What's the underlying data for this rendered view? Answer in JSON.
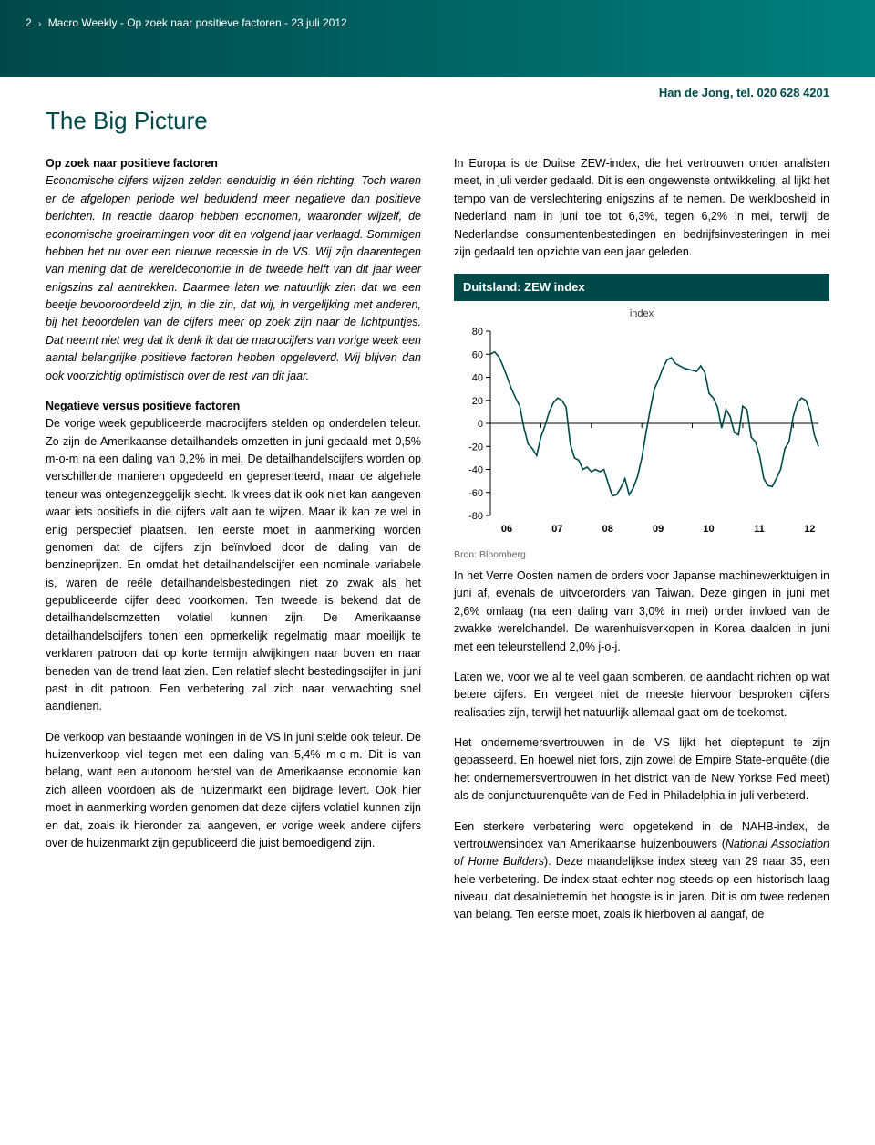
{
  "header": {
    "page_num": "2",
    "publication": "Macro Weekly",
    "subtitle": "Op zoek naar positieve factoren",
    "date": "23 juli 2012"
  },
  "author_line": "Han de Jong, tel. 020 628 4201",
  "title": "The Big Picture",
  "left": {
    "lead_bold": "Op zoek naar positieve factoren",
    "lead_italic": "Economische cijfers wijzen zelden eenduidig in één richting. Toch waren er de afgelopen periode wel beduidend meer negatieve dan positieve berichten. In reactie daarop hebben economen, waaronder wijzelf, de economische groeiramingen voor dit en volgend jaar verlaagd. Sommigen hebben het nu over een nieuwe recessie in de VS. Wij zijn daarentegen van mening dat de wereldeconomie in de tweede helft van dit jaar weer enigszins zal aantrekken. Daarmee laten we natuurlijk zien dat we een beetje bevooroordeeld zijn, in die zin, dat wij, in vergelijking met anderen, bij het beoordelen van de cijfers meer op zoek zijn naar de lichtpuntjes. Dat neemt niet weg dat ik denk ik dat de macrocijfers van vorige week een aantal belangrijke positieve factoren hebben opgeleverd. Wij blijven dan ook voorzichtig optimistisch over de rest van dit jaar.",
    "h2": "Negatieve versus positieve factoren",
    "p2": "De vorige week gepubliceerde macrocijfers stelden op onderdelen teleur. Zo zijn de Amerikaanse detailhandels-omzetten in juni gedaald met 0,5% m-o-m na een daling van 0,2% in mei. De detailhandelscijfers worden op verschillende manieren opgedeeld en gepresenteerd, maar de algehele teneur was ontegenzeggelijk slecht. Ik vrees dat ik ook niet kan aangeven waar iets positiefs in die cijfers valt aan te wijzen. Maar ik kan ze wel in enig perspectief plaatsen. Ten eerste moet in aanmerking worden genomen dat de cijfers zijn beïnvloed door de daling van de benzineprijzen. En omdat het detailhandelscijfer een nominale variabele is, waren de reële detailhandelsbestedingen niet zo zwak als het gepubliceerde cijfer deed voorkomen. Ten tweede is bekend dat de detailhandelsomzetten volatiel kunnen zijn. De Amerikaanse detailhandelscijfers tonen een opmerkelijk regelmatig maar moeilijk te verklaren patroon dat op korte termijn afwijkingen naar boven en naar beneden van de trend laat zien. Een relatief slecht bestedingscijfer in juni past in dit patroon. Een verbetering zal zich naar verwachting snel aandienen.",
    "p3": "De verkoop van bestaande woningen in de VS in juni stelde ook teleur. De huizenverkoop viel tegen met een daling van 5,4% m-o-m. Dit is van belang, want een autonoom herstel van de Amerikaanse economie kan zich alleen voordoen als de huizenmarkt een bijdrage levert. Ook hier moet in aanmerking worden genomen dat deze cijfers volatiel kunnen zijn en dat, zoals ik hieronder zal aangeven, er vorige week andere cijfers over de huizenmarkt zijn gepubliceerd die juist bemoedigend zijn."
  },
  "right": {
    "p1": "In Europa is de Duitse ZEW-index, die het vertrouwen onder analisten meet, in juli verder gedaald. Dit is een ongewenste ontwikkeling, al lijkt het tempo van de verslechtering enigszins af te nemen. De werkloosheid in Nederland nam in juni toe tot 6,3%, tegen 6,2% in mei, terwijl de Nederlandse consumentenbestedingen en bedrijfsinvesteringen in mei zijn gedaald ten opzichte van een jaar geleden.",
    "p2": "In het Verre Oosten namen de orders voor Japanse machinewerktuigen in juni af, evenals de uitvoerorders van Taiwan. Deze gingen in juni met 2,6% omlaag (na een daling van 3,0% in mei) onder invloed van de zwakke wereldhandel. De warenhuisverkopen in Korea daalden in juni met een teleurstellend 2,0% j-o-j.",
    "p3": "Laten we, voor we al te veel gaan somberen, de aandacht richten op wat betere cijfers. En vergeet niet de meeste hiervoor besproken cijfers realisaties zijn, terwijl het natuurlijk allemaal gaat om de toekomst.",
    "p4": "Het ondernemersvertrouwen in de VS lijkt het dieptepunt te zijn gepasseerd. En hoewel niet fors, zijn zowel de Empire State-enquête (die het ondernemersvertrouwen in het district van de New Yorkse Fed meet) als de conjunctuurenquête van de Fed in Philadelphia in juli verbeterd.",
    "p5_a": "Een sterkere verbetering werd opgetekend in de NAHB-index, de vertrouwensindex van Amerikaanse huizenbouwers (",
    "p5_ital": "National Association of Home Builders",
    "p5_b": "). Deze maandelijkse index steeg van 29 naar 35, een hele verbetering. De index staat echter nog steeds op een historisch laag niveau, dat desalniettemin het hoogste is in jaren. Dit is om twee redenen van belang. Ten eerste moet, zoals ik hierboven al aangaf, de"
  },
  "chart": {
    "title": "Duitsland: ZEW index",
    "sub": "index",
    "source": "Bron: Bloomberg",
    "type": "line",
    "line_color": "#004949",
    "line_width": 1.6,
    "axis_color": "#000000",
    "tick_color": "#000000",
    "background_color": "#ffffff",
    "y_ticks": [
      -80,
      -60,
      -40,
      -20,
      0,
      20,
      40,
      60,
      80
    ],
    "ylim": [
      -80,
      80
    ],
    "x_ticks": [
      "06",
      "07",
      "08",
      "09",
      "10",
      "11",
      "12"
    ],
    "xlim": [
      0,
      78
    ],
    "tick_fontsize": 11,
    "values": [
      60,
      62,
      58,
      50,
      40,
      30,
      22,
      15,
      -4,
      -18,
      -22,
      -28,
      -12,
      -2,
      10,
      18,
      22,
      20,
      14,
      -18,
      -30,
      -32,
      -40,
      -38,
      -42,
      -40,
      -42,
      -40,
      -52,
      -63,
      -62,
      -56,
      -48,
      -62,
      -56,
      -46,
      -30,
      -8,
      12,
      30,
      38,
      48,
      55,
      57,
      52,
      50,
      48,
      47,
      46,
      45,
      50,
      44,
      26,
      22,
      14,
      -4,
      12,
      6,
      -8,
      -10,
      15,
      12,
      -12,
      -16,
      -28,
      -48,
      -54,
      -55,
      -48,
      -40,
      -22,
      -16,
      6,
      18,
      22,
      20,
      10,
      -10,
      -20
    ]
  }
}
